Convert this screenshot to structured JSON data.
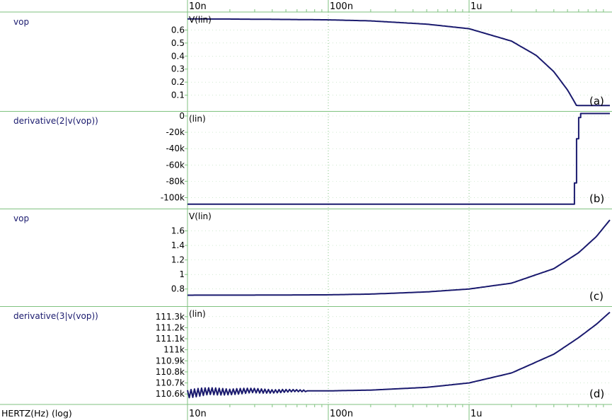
{
  "chart_data": {
    "type": "line",
    "xlabel": "HERTZ(Hz) (log)",
    "xscale": "log",
    "xlim": [
      1e-08,
      1e-05
    ],
    "xticks": [
      {
        "value": 1e-08,
        "label": "10n"
      },
      {
        "value": 1e-07,
        "label": "100n"
      },
      {
        "value": 1e-06,
        "label": "1u"
      }
    ],
    "colors": {
      "trace": "#1a1a6e",
      "grid": "#7fc27f",
      "label": "#1a1a6e"
    },
    "panels": [
      {
        "signal": "vop",
        "unit": "V(lin)",
        "tag": "(a)",
        "ylim": [
          0,
          0.7
        ],
        "yticks": [
          0.6,
          0.5,
          0.4,
          0.3,
          0.2,
          0.1
        ],
        "ytick_labels": [
          "0.6",
          "0.5",
          "0.4",
          "0.3",
          "0.2",
          "0.1"
        ],
        "series": [
          {
            "x": [
              1e-08,
              2e-08,
              5e-08,
              1e-07,
              2e-07,
              5e-07,
              1e-06,
              2e-06,
              3e-06,
              4e-06,
              5e-06,
              5.8e-06,
              6.2e-06,
              1e-05
            ],
            "y": [
              0.685,
              0.684,
              0.681,
              0.678,
              0.67,
              0.645,
              0.61,
              0.515,
              0.405,
              0.28,
              0.14,
              0.02,
              0.02,
              0.02
            ]
          }
        ]
      },
      {
        "signal": "derivative(2|v(vop))",
        "unit": "(lin)",
        "tag": "(b)",
        "ylim": [
          -110000,
          0
        ],
        "yticks": [
          0,
          -20000,
          -40000,
          -60000,
          -80000,
          -100000
        ],
        "ytick_labels": [
          "0",
          "-20k",
          "-40k",
          "-60k",
          "-80k",
          "-100k"
        ],
        "series": [
          {
            "x": [
              1e-08,
              5.6e-06,
              5.6e-06,
              5.8e-06,
              5.8e-06,
              6e-06,
              6e-06,
              6.2e-06,
              6.2e-06,
              1e-05
            ],
            "y": [
              -108000,
              -108000,
              -82000,
              -82000,
              -28000,
              -28000,
              -2000,
              -2000,
              3000,
              3000
            ]
          }
        ]
      },
      {
        "signal": "vop",
        "unit": "V(lin)",
        "tag": "(c)",
        "ylim": [
          0.7,
          1.8
        ],
        "yticks": [
          1.6,
          1.4,
          1.2,
          1.0,
          0.8
        ],
        "ytick_labels": [
          "1.6",
          "1.4",
          "1.2",
          "1",
          "0.8"
        ],
        "series": [
          {
            "x": [
              1e-08,
              3e-08,
              1e-07,
              2e-07,
              5e-07,
              1e-06,
              2e-06,
              4e-06,
              6e-06,
              8e-06,
              1e-05
            ],
            "y": [
              0.715,
              0.716,
              0.72,
              0.73,
              0.76,
              0.8,
              0.88,
              1.08,
              1.3,
              1.52,
              1.75
            ]
          }
        ]
      },
      {
        "signal": "derivative(3|v(vop))",
        "unit": "(lin)",
        "tag": "(d)",
        "ylim": [
          110550,
          111350
        ],
        "yticks": [
          111300,
          111200,
          111100,
          111000,
          110900,
          110800,
          110700,
          110600
        ],
        "ytick_labels": [
          "111.3k",
          "111.2k",
          "111.1k",
          "111k",
          "110.9k",
          "110.8k",
          "110.7k",
          "110.6k"
        ],
        "noise": {
          "x_end": 7e-08,
          "amplitude": 45,
          "decay_to": 8
        },
        "series": [
          {
            "x": [
              1e-08,
              2e-08,
              5e-08,
              1e-07,
              2e-07,
              5e-07,
              1e-06,
              2e-06,
              4e-06,
              6e-06,
              8e-06,
              1e-05
            ],
            "y": [
              110610,
              110625,
              110628,
              110628,
              110635,
              110660,
              110700,
              110790,
              110960,
              111110,
              111230,
              111340
            ]
          }
        ]
      }
    ]
  }
}
